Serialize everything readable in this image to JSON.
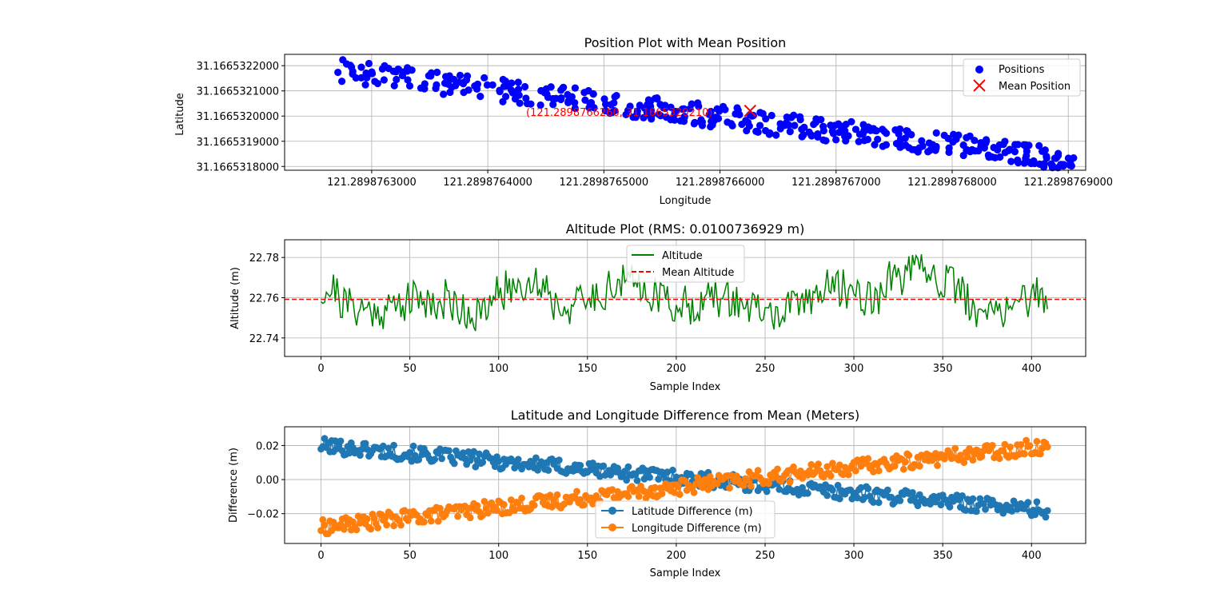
{
  "figure": {
    "background": "#ffffff"
  },
  "chart_data": [
    {
      "type": "scatter",
      "title": "Position Plot with Mean Position",
      "xlabel": "Longitude",
      "ylabel": "Latitude",
      "xlim": [
        121.289876225,
        121.289876915
      ],
      "ylim": [
        31.166531785,
        31.166532245
      ],
      "xticks": [
        "121.2898763000",
        "121.2898764000",
        "121.2898765000",
        "121.2898766000",
        "121.2898767000",
        "121.2898768000",
        "121.2898769000"
      ],
      "xtick_values": [
        121.2898763,
        121.2898764,
        121.2898765,
        121.2898766,
        121.2898767,
        121.2898768,
        121.2898769
      ],
      "yticks": [
        "31.1665318000",
        "31.1665319000",
        "31.1665320000",
        "31.1665321000",
        "31.1665322000"
      ],
      "ytick_values": [
        31.1665318,
        31.1665319,
        31.166532,
        31.1665321,
        31.1665322
      ],
      "grid": true,
      "legend": {
        "placement": "upper right",
        "entries": [
          "Positions",
          "Mean Position"
        ]
      },
      "series": [
        {
          "name": "Positions",
          "color": "#0000ff",
          "marker": "circle",
          "trend": {
            "x_range": [
              121.289876265,
              121.289876905
            ],
            "y_start": 31.166532185,
            "y_end": 31.166531825,
            "n": 410
          }
        },
        {
          "name": "Mean Position",
          "color": "#ff0000",
          "marker": "x",
          "points": [
            {
              "x": 121.289876626,
              "y": 31.166532021
            }
          ]
        }
      ],
      "annotation": {
        "text": "(121.2898766260, 31.1665320210)",
        "color": "#ff0000"
      }
    },
    {
      "type": "line",
      "title": "Altitude Plot (RMS: 0.0100736929 m)",
      "xlabel": "Sample Index",
      "ylabel": "Altitude (m)",
      "xlim": [
        -20.5,
        430.5
      ],
      "ylim": [
        22.7308,
        22.7888
      ],
      "xticks": [
        "0",
        "50",
        "100",
        "150",
        "200",
        "250",
        "300",
        "350",
        "400"
      ],
      "xtick_values": [
        0,
        50,
        100,
        150,
        200,
        250,
        300,
        350,
        400
      ],
      "yticks": [
        "22.74",
        "22.76",
        "22.78"
      ],
      "ytick_values": [
        22.74,
        22.76,
        22.78
      ],
      "grid": true,
      "legend": {
        "placement": "upper center",
        "entries": [
          "Altitude",
          "Mean Altitude"
        ]
      },
      "n_samples": 410,
      "series": [
        {
          "name": "Altitude",
          "color": "#008000",
          "line": "solid",
          "mean": 22.7592,
          "amplitude": 0.0115
        },
        {
          "name": "Mean Altitude",
          "color": "#ff0000",
          "line": "dashed",
          "value": 22.7592
        }
      ]
    },
    {
      "type": "line",
      "title": "Latitude and Longitude Difference from Mean (Meters)",
      "xlabel": "Sample Index",
      "ylabel": "Difference (m)",
      "xlim": [
        -20.5,
        430.5
      ],
      "ylim": [
        -0.0375,
        0.031
      ],
      "xticks": [
        "0",
        "50",
        "100",
        "150",
        "200",
        "250",
        "300",
        "350",
        "400"
      ],
      "xtick_values": [
        0,
        50,
        100,
        150,
        200,
        250,
        300,
        350,
        400
      ],
      "yticks": [
        "−0.02",
        "0.00",
        "0.02"
      ],
      "ytick_values": [
        -0.02,
        0.0,
        0.02
      ],
      "grid": true,
      "legend": {
        "placement": "lower center",
        "entries": [
          "Latitude Difference (m)",
          "Longitude Difference (m)"
        ]
      },
      "n_samples": 410,
      "series": [
        {
          "name": "Latitude Difference (m)",
          "color": "#1f77b4",
          "marker": "circle",
          "start": 0.02,
          "end": -0.018,
          "noise": 0.0045
        },
        {
          "name": "Longitude Difference (m)",
          "color": "#ff7f0e",
          "marker": "circle",
          "start": -0.028,
          "end": 0.02,
          "noise": 0.0045
        }
      ]
    }
  ]
}
